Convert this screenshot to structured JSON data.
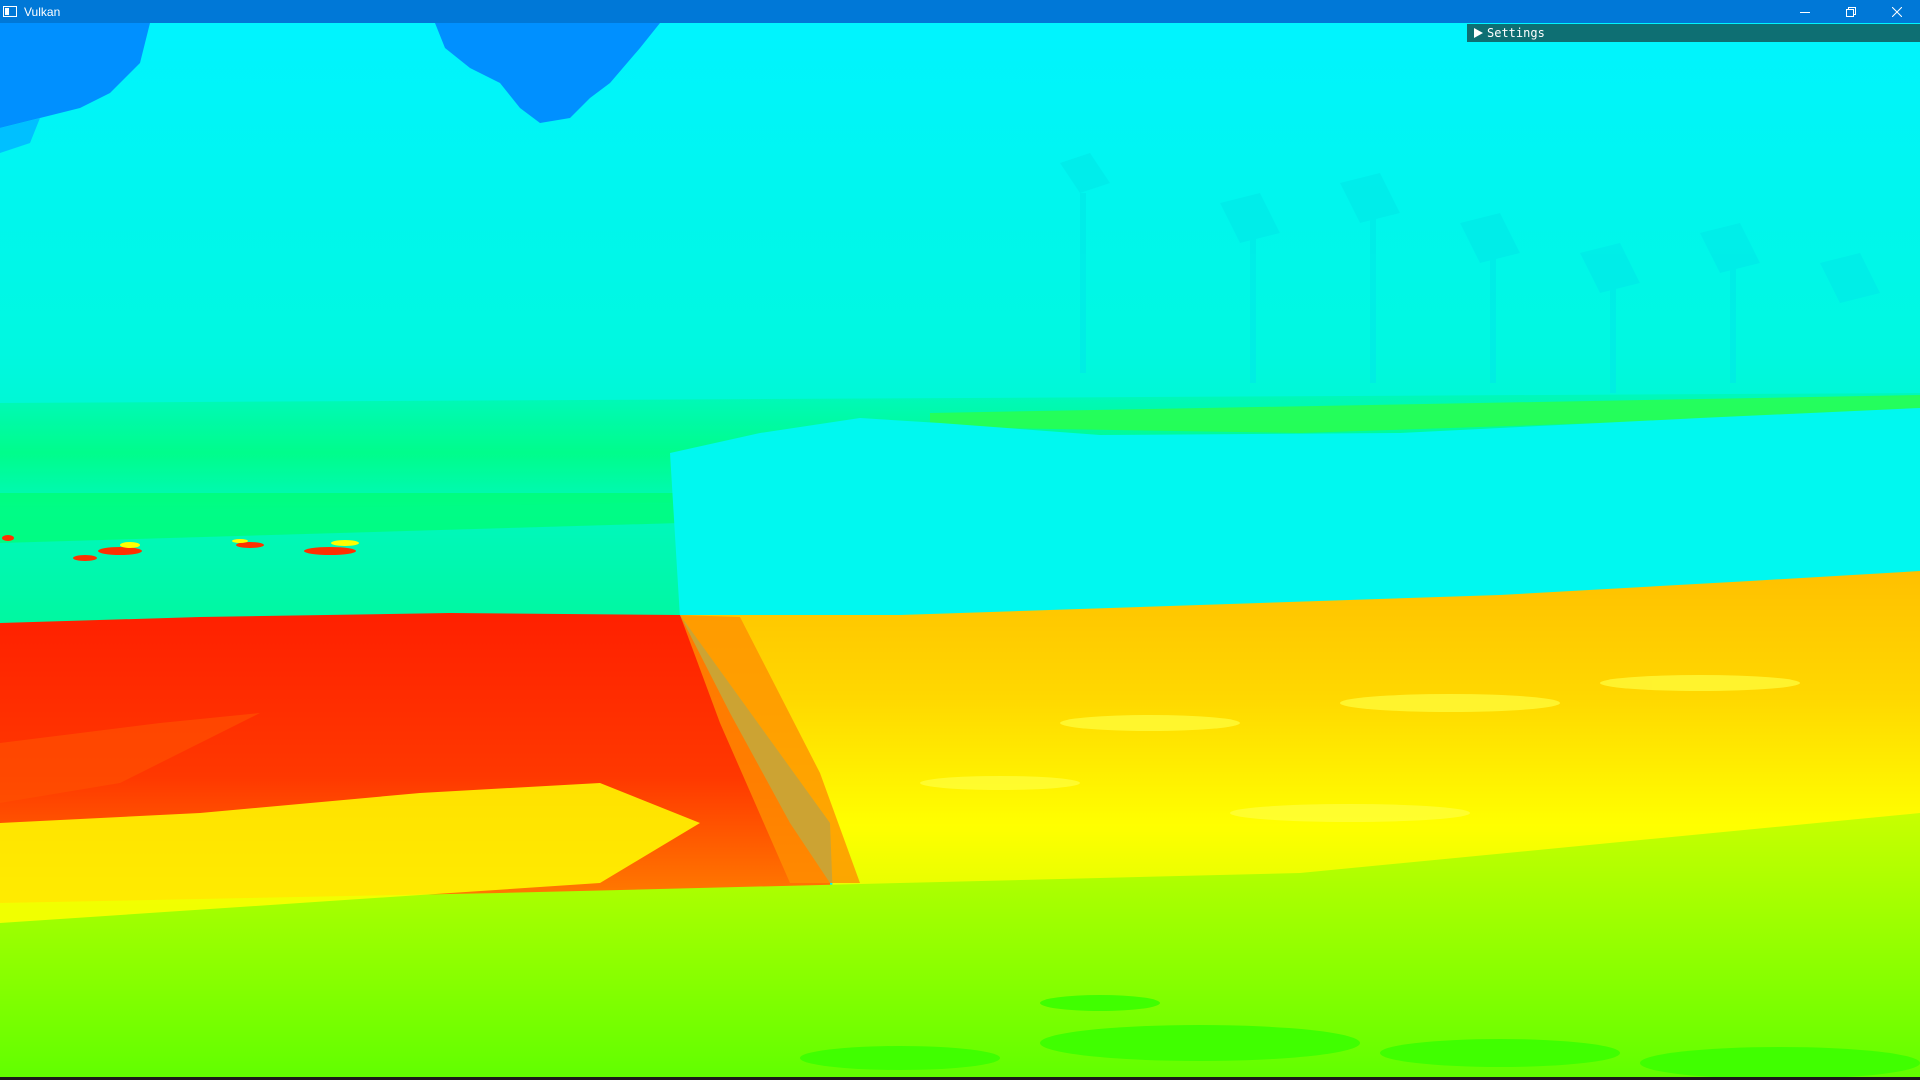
{
  "window": {
    "title": "Vulkan",
    "icon": "app-window-icon",
    "controls": {
      "minimize_icon": "minimize-icon",
      "restore_icon": "restore-icon",
      "close_icon": "close-icon"
    }
  },
  "settings_panel": {
    "label": "Settings",
    "collapsed": true,
    "arrow_icon": "triangle-right-icon"
  },
  "colors": {
    "titlebar": "#0078d7",
    "settings_header": "#0e6f73",
    "sky": "#0090ff",
    "trees": "#00f0ff",
    "shore_green": "#00ff60",
    "water_red": "#ff2000",
    "water_orange": "#ff8000",
    "water_yellow": "#ffff00",
    "water_lime": "#80ff00"
  }
}
